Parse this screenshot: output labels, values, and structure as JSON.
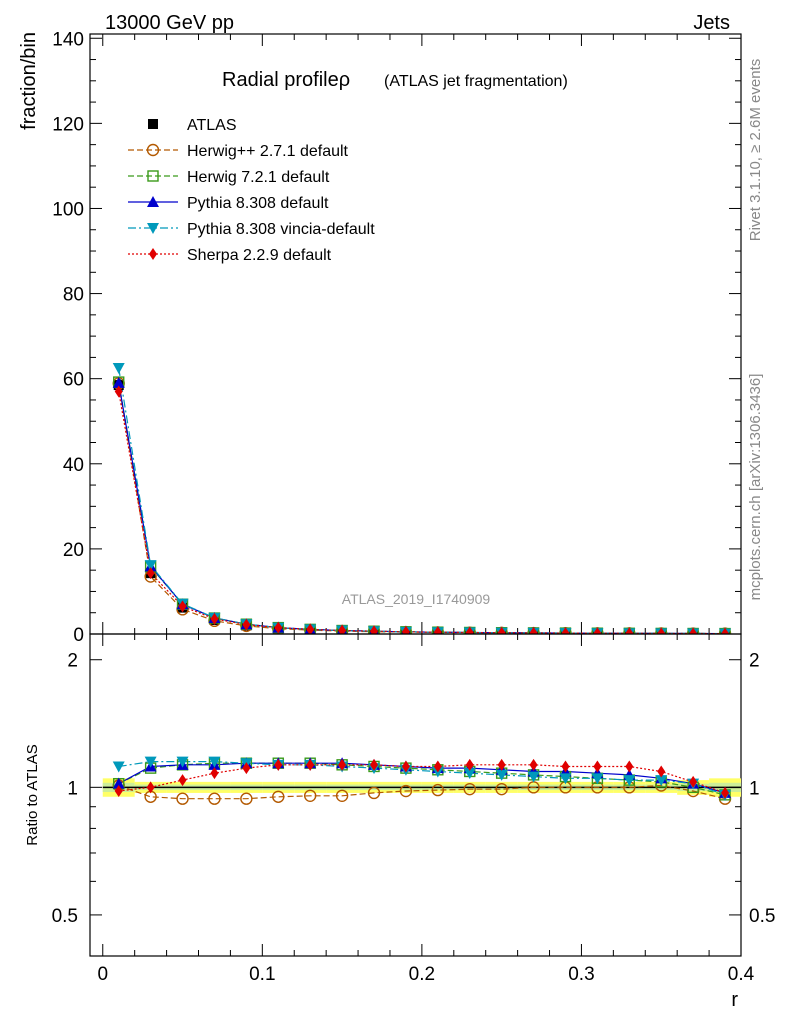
{
  "header": {
    "left": "13000 GeV pp",
    "right": "Jets"
  },
  "side": {
    "rivet": "Rivet 3.1.10, ≥ 2.6M events",
    "mcplots": "mcplots.cern.ch [arXiv:1306.3436]"
  },
  "chart_data": [
    {
      "type": "line",
      "title": "Radial profileρ",
      "subtitle": "(ATLAS jet fragmentation)",
      "ylabel": "fraction/bin",
      "xlabel": "",
      "watermark": "ATLAS_2019_I1740909",
      "xlim": [
        -0.008,
        0.4
      ],
      "ylim": [
        0,
        141
      ],
      "yticks": [
        0,
        20,
        40,
        60,
        80,
        100,
        120,
        140
      ],
      "legend": "top-left",
      "x": [
        0.01,
        0.03,
        0.05,
        0.07,
        0.09,
        0.11,
        0.13,
        0.15,
        0.17,
        0.19,
        0.21,
        0.23,
        0.25,
        0.27,
        0.29,
        0.31,
        0.33,
        0.35,
        0.37,
        0.39
      ],
      "series": [
        {
          "name": "ATLAS",
          "color": "#000000",
          "marker": "square-filled",
          "dash": "none",
          "values": [
            58.5,
            14.3,
            6.2,
            3.3,
            2.0,
            1.3,
            0.95,
            0.72,
            0.57,
            0.46,
            0.38,
            0.32,
            0.27,
            0.23,
            0.2,
            0.17,
            0.15,
            0.13,
            0.11,
            0.1
          ]
        },
        {
          "name": "Herwig++ 2.7.1 default",
          "color": "#b35900",
          "marker": "circle-open",
          "dash": "6,3",
          "values": [
            58.9,
            13.5,
            5.8,
            3.1,
            1.9,
            1.24,
            0.91,
            0.69,
            0.55,
            0.45,
            0.37,
            0.32,
            0.27,
            0.23,
            0.2,
            0.17,
            0.15,
            0.13,
            0.11,
            0.09
          ]
        },
        {
          "name": "Herwig 7.2.1 default",
          "color": "#3a9a1a",
          "marker": "square-open",
          "dash": "6,3",
          "values": [
            59.2,
            15.8,
            7.0,
            3.75,
            2.3,
            1.5,
            1.09,
            0.82,
            0.65,
            0.52,
            0.43,
            0.36,
            0.3,
            0.26,
            0.22,
            0.19,
            0.17,
            0.14,
            0.12,
            0.1
          ]
        },
        {
          "name": "Pythia 8.308 default",
          "color": "#0000cc",
          "marker": "triangle-up",
          "dash": "none",
          "values": [
            59.0,
            15.9,
            7.0,
            3.75,
            2.3,
            1.5,
            1.09,
            0.82,
            0.65,
            0.52,
            0.43,
            0.36,
            0.3,
            0.26,
            0.22,
            0.19,
            0.17,
            0.14,
            0.12,
            0.1
          ]
        },
        {
          "name": "Pythia 8.308 vincia-default",
          "color": "#0099bb",
          "marker": "triangle-down",
          "dash": "8,3,2,3",
          "values": [
            62.5,
            16.2,
            7.1,
            3.8,
            2.3,
            1.48,
            1.08,
            0.81,
            0.64,
            0.51,
            0.42,
            0.35,
            0.29,
            0.25,
            0.21,
            0.18,
            0.16,
            0.14,
            0.12,
            0.1
          ]
        },
        {
          "name": "Sherpa 2.2.9 default",
          "color": "#e00000",
          "marker": "diamond",
          "dash": "2,2",
          "values": [
            57.0,
            14.3,
            6.5,
            3.55,
            2.2,
            1.5,
            1.08,
            0.82,
            0.65,
            0.52,
            0.43,
            0.36,
            0.3,
            0.26,
            0.22,
            0.19,
            0.17,
            0.14,
            0.12,
            0.1
          ]
        }
      ]
    },
    {
      "type": "line",
      "title": "",
      "xlabel": "r",
      "ylabel": "Ratio to ATLAS",
      "xlim": [
        -0.008,
        0.4
      ],
      "ylim": [
        0.4,
        2.3
      ],
      "yscale": "log",
      "yticks": [
        0.5,
        1,
        2
      ],
      "xticks": [
        0,
        0.1,
        0.2,
        0.3,
        0.4
      ],
      "reference": 1,
      "band": {
        "color": "#ffff66",
        "inner_color": "#ccee99",
        "x": [
          0.01,
          0.03,
          0.05,
          0.07,
          0.09,
          0.11,
          0.13,
          0.15,
          0.17,
          0.19,
          0.21,
          0.23,
          0.25,
          0.27,
          0.29,
          0.31,
          0.33,
          0.35,
          0.37,
          0.39
        ],
        "half_width": [
          0.05,
          0.03,
          0.03,
          0.03,
          0.03,
          0.03,
          0.03,
          0.03,
          0.03,
          0.03,
          0.03,
          0.03,
          0.03,
          0.03,
          0.03,
          0.03,
          0.03,
          0.03,
          0.04,
          0.05
        ]
      },
      "x": [
        0.01,
        0.03,
        0.05,
        0.07,
        0.09,
        0.11,
        0.13,
        0.15,
        0.17,
        0.19,
        0.21,
        0.23,
        0.25,
        0.27,
        0.29,
        0.31,
        0.33,
        0.35,
        0.37,
        0.39
      ],
      "series": [
        {
          "name": "Herwig++ 2.7.1 default",
          "color": "#b35900",
          "marker": "circle-open",
          "dash": "6,3",
          "values": [
            1.01,
            0.95,
            0.94,
            0.94,
            0.94,
            0.95,
            0.955,
            0.955,
            0.97,
            0.98,
            0.985,
            0.99,
            0.99,
            1.0,
            1.0,
            1.0,
            1.0,
            1.01,
            0.98,
            0.94
          ]
        },
        {
          "name": "Herwig 7.2.1 default",
          "color": "#3a9a1a",
          "marker": "square-open",
          "dash": "6,3",
          "values": [
            1.02,
            1.11,
            1.13,
            1.14,
            1.14,
            1.14,
            1.14,
            1.13,
            1.12,
            1.11,
            1.1,
            1.09,
            1.08,
            1.07,
            1.06,
            1.05,
            1.04,
            1.03,
            1.0,
            0.96
          ]
        },
        {
          "name": "Pythia 8.308 default",
          "color": "#0000cc",
          "marker": "triangle-up",
          "dash": "none",
          "values": [
            1.02,
            1.12,
            1.13,
            1.13,
            1.14,
            1.14,
            1.14,
            1.14,
            1.13,
            1.12,
            1.11,
            1.11,
            1.1,
            1.09,
            1.09,
            1.08,
            1.07,
            1.05,
            1.02,
            0.97
          ]
        },
        {
          "name": "Pythia 8.308 vincia-default",
          "color": "#0099bb",
          "marker": "triangle-down",
          "dash": "8,3,2,3",
          "values": [
            1.12,
            1.15,
            1.15,
            1.15,
            1.14,
            1.13,
            1.13,
            1.12,
            1.11,
            1.1,
            1.09,
            1.08,
            1.07,
            1.06,
            1.05,
            1.05,
            1.04,
            1.04,
            1.02,
            0.96
          ]
        },
        {
          "name": "Sherpa 2.2.9 default",
          "color": "#e00000",
          "marker": "diamond",
          "dash": "2,2",
          "values": [
            0.98,
            1.0,
            1.04,
            1.08,
            1.11,
            1.13,
            1.13,
            1.13,
            1.13,
            1.12,
            1.12,
            1.13,
            1.13,
            1.13,
            1.12,
            1.12,
            1.12,
            1.09,
            1.03,
            0.97
          ]
        }
      ]
    }
  ]
}
